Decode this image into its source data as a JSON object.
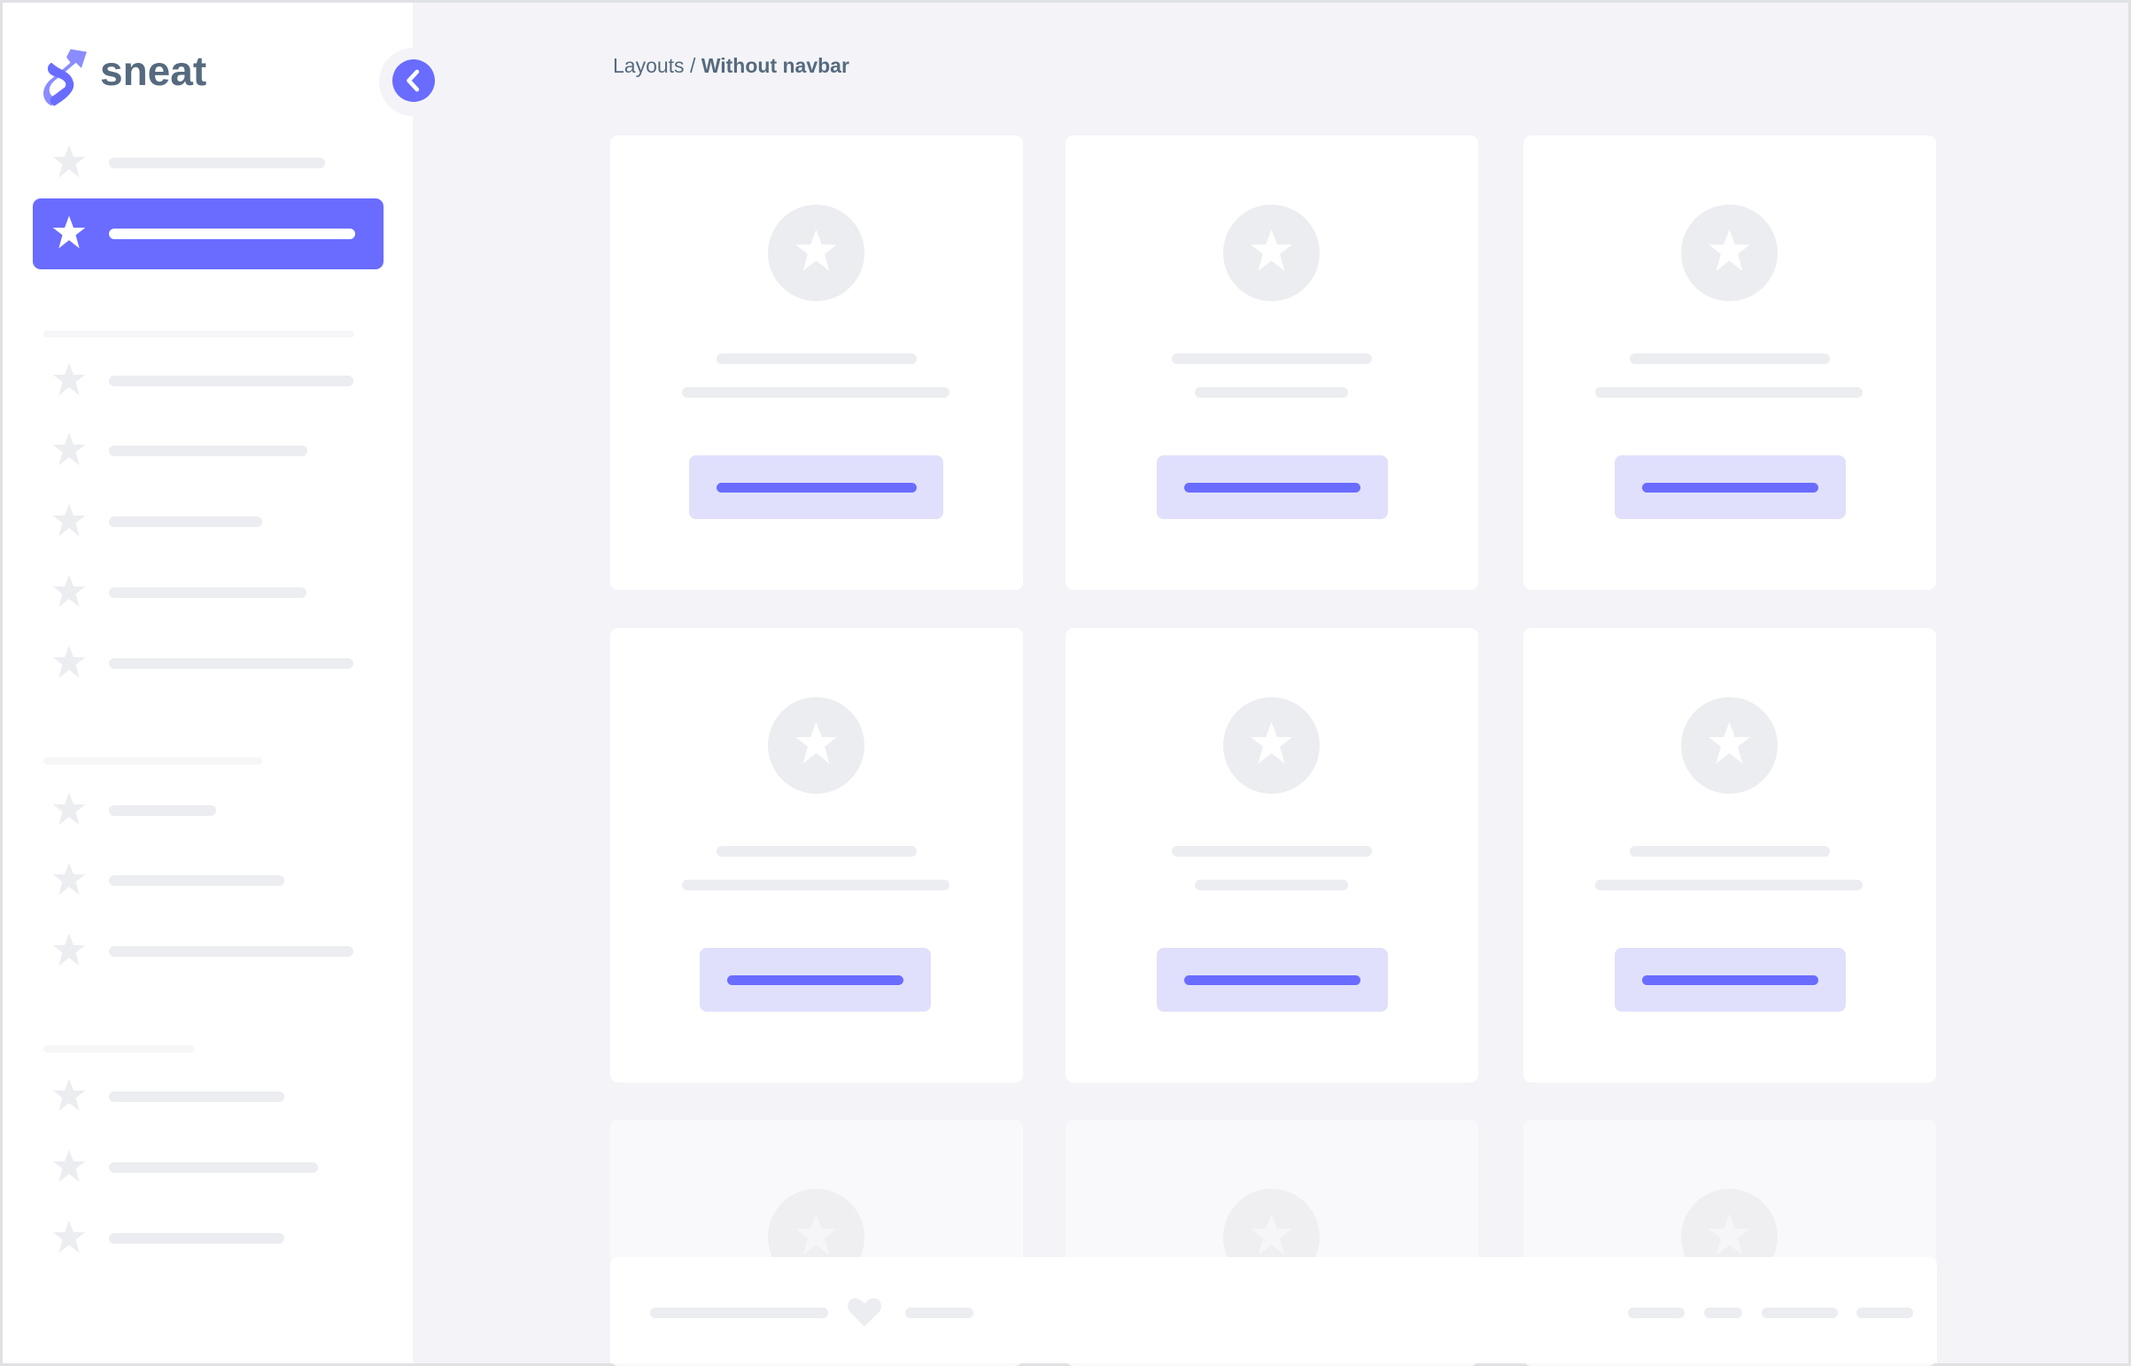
{
  "brand": {
    "name": "sneat",
    "color": "#696cff",
    "text_color": "#566a7f"
  },
  "breadcrumb": {
    "parent": "Layouts",
    "separator": " / ",
    "current": "Without navbar"
  },
  "sidebar": {
    "active_index": 1,
    "collapse_icon": "chevron-left-icon"
  },
  "colors": {
    "background": "#f4f4f8",
    "accent": "#696cff",
    "placeholder": "#ecedf0",
    "accent_light": "#e0e0fc"
  }
}
